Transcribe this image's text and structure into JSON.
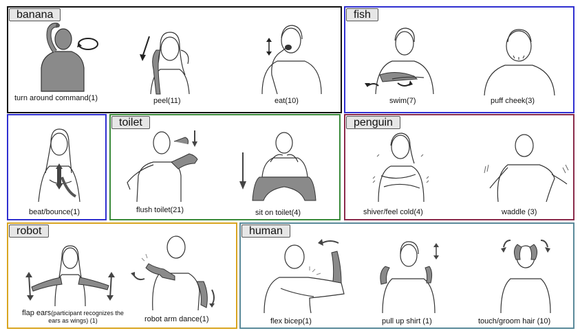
{
  "categories": {
    "banana": {
      "tag": "banana",
      "color": "#111111",
      "signs": [
        {
          "label": "turn around command(1)"
        },
        {
          "label": "peel(11)"
        },
        {
          "label": "eat(10)"
        }
      ]
    },
    "fish": {
      "tag": "fish",
      "color": "#2f2fd0",
      "signs": [
        {
          "label": "swim(7)"
        },
        {
          "label": "puff cheek(3)"
        }
      ]
    },
    "fish_extra": {
      "color": "#2f2fd0",
      "signs": [
        {
          "label": "beat/bounce(1)"
        }
      ]
    },
    "toilet": {
      "tag": "toilet",
      "color": "#3a8a3a",
      "signs": [
        {
          "label": "flush toilet(21)"
        },
        {
          "label": "sit on toilet(4)"
        }
      ]
    },
    "penguin": {
      "tag": "penguin",
      "color": "#8a2a4a",
      "signs": [
        {
          "label": "shiver/feel cold(4)"
        },
        {
          "label": "waddle (3)"
        }
      ]
    },
    "robot": {
      "tag": "robot",
      "color": "#d9a520",
      "signs": [
        {
          "label_main": "flap ears",
          "label_note": "(participant recognizes the",
          "label_line2": "ears as wings) (1)"
        },
        {
          "label": "robot arm dance(1)"
        }
      ]
    },
    "human": {
      "tag": "human",
      "color": "#5a8a9a",
      "signs": [
        {
          "label": "flex bicep(1)"
        },
        {
          "label": "pull up shirt (1)"
        },
        {
          "label": "touch/groom hair (10)"
        }
      ]
    }
  }
}
